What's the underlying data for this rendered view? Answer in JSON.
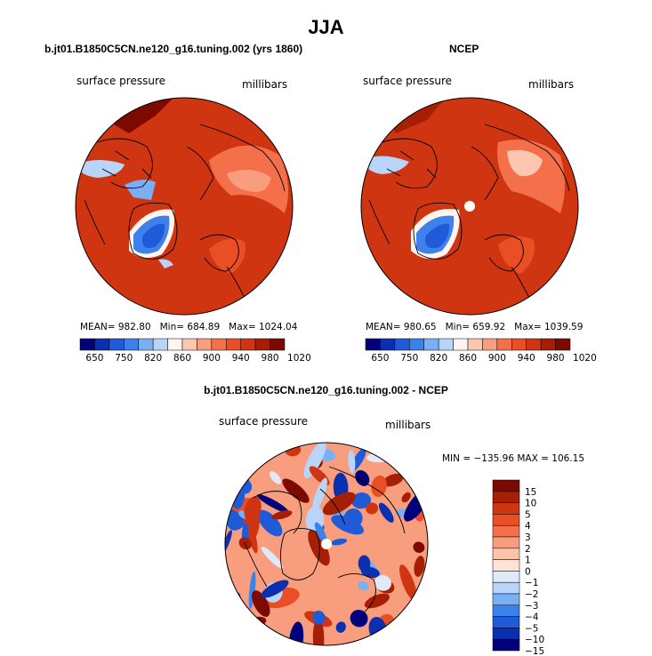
{
  "figure": {
    "title": "JJA",
    "variable_label": "surface pressure",
    "units_label": "millibars"
  },
  "palette": {
    "abs": [
      "#00007a",
      "#0a2fb0",
      "#1f5bd6",
      "#3d82ec",
      "#7aaef5",
      "#b8d4f8",
      "#fff4ee",
      "#fcc7ae",
      "#f89d7d",
      "#f4704a",
      "#ea4e25",
      "#cf3510",
      "#a51f04",
      "#7c0a00"
    ],
    "diff": [
      "#00007a",
      "#0a2fb0",
      "#1f5bd6",
      "#3d82ec",
      "#7aaef5",
      "#b8d4f8",
      "#dfeaf8",
      "#fde3d6",
      "#fcc3a8",
      "#f89d7d",
      "#f4704a",
      "#ea4e25",
      "#cf3510",
      "#a51f04",
      "#7c0a00"
    ]
  },
  "chart_data": [
    {
      "type": "heatmap",
      "projection": "north-polar-stereographic",
      "title": "b.jt01.B1850C5CN.ne120_g16.tuning.002 (yrs 1860)",
      "variable": "surface pressure",
      "units": "millibars",
      "stats_text": "MEAN= 982.80   Min= 684.89   Max= 1024.04",
      "stats": {
        "mean": 982.8,
        "min": 684.89,
        "max": 1024.04
      },
      "colorbar_labels": [
        "650",
        "750",
        "820",
        "860",
        "900",
        "940",
        "980",
        "1020"
      ]
    },
    {
      "type": "heatmap",
      "projection": "north-polar-stereographic",
      "title": "NCEP",
      "variable": "surface pressure",
      "units": "millibars",
      "stats_text": "MEAN= 980.65   Min= 659.92   Max= 1039.59",
      "stats": {
        "mean": 980.65,
        "min": 659.92,
        "max": 1039.59
      },
      "colorbar_labels": [
        "650",
        "750",
        "820",
        "860",
        "900",
        "940",
        "980",
        "1020"
      ]
    },
    {
      "type": "heatmap",
      "projection": "north-polar-stereographic",
      "title": "b.jt01.B1850C5CN.ne120_g16.tuning.002 - NCEP",
      "variable": "surface pressure",
      "units": "millibars",
      "stats_text": "MIN = −135.96 MAX = 106.15",
      "stats": {
        "min": -135.96,
        "max": 106.15
      },
      "colorbar_labels": [
        "15",
        "10",
        "5",
        "4",
        "3",
        "2",
        "1",
        "0",
        "−1",
        "−2",
        "−3",
        "−4",
        "−5",
        "−10",
        "−15"
      ]
    }
  ]
}
